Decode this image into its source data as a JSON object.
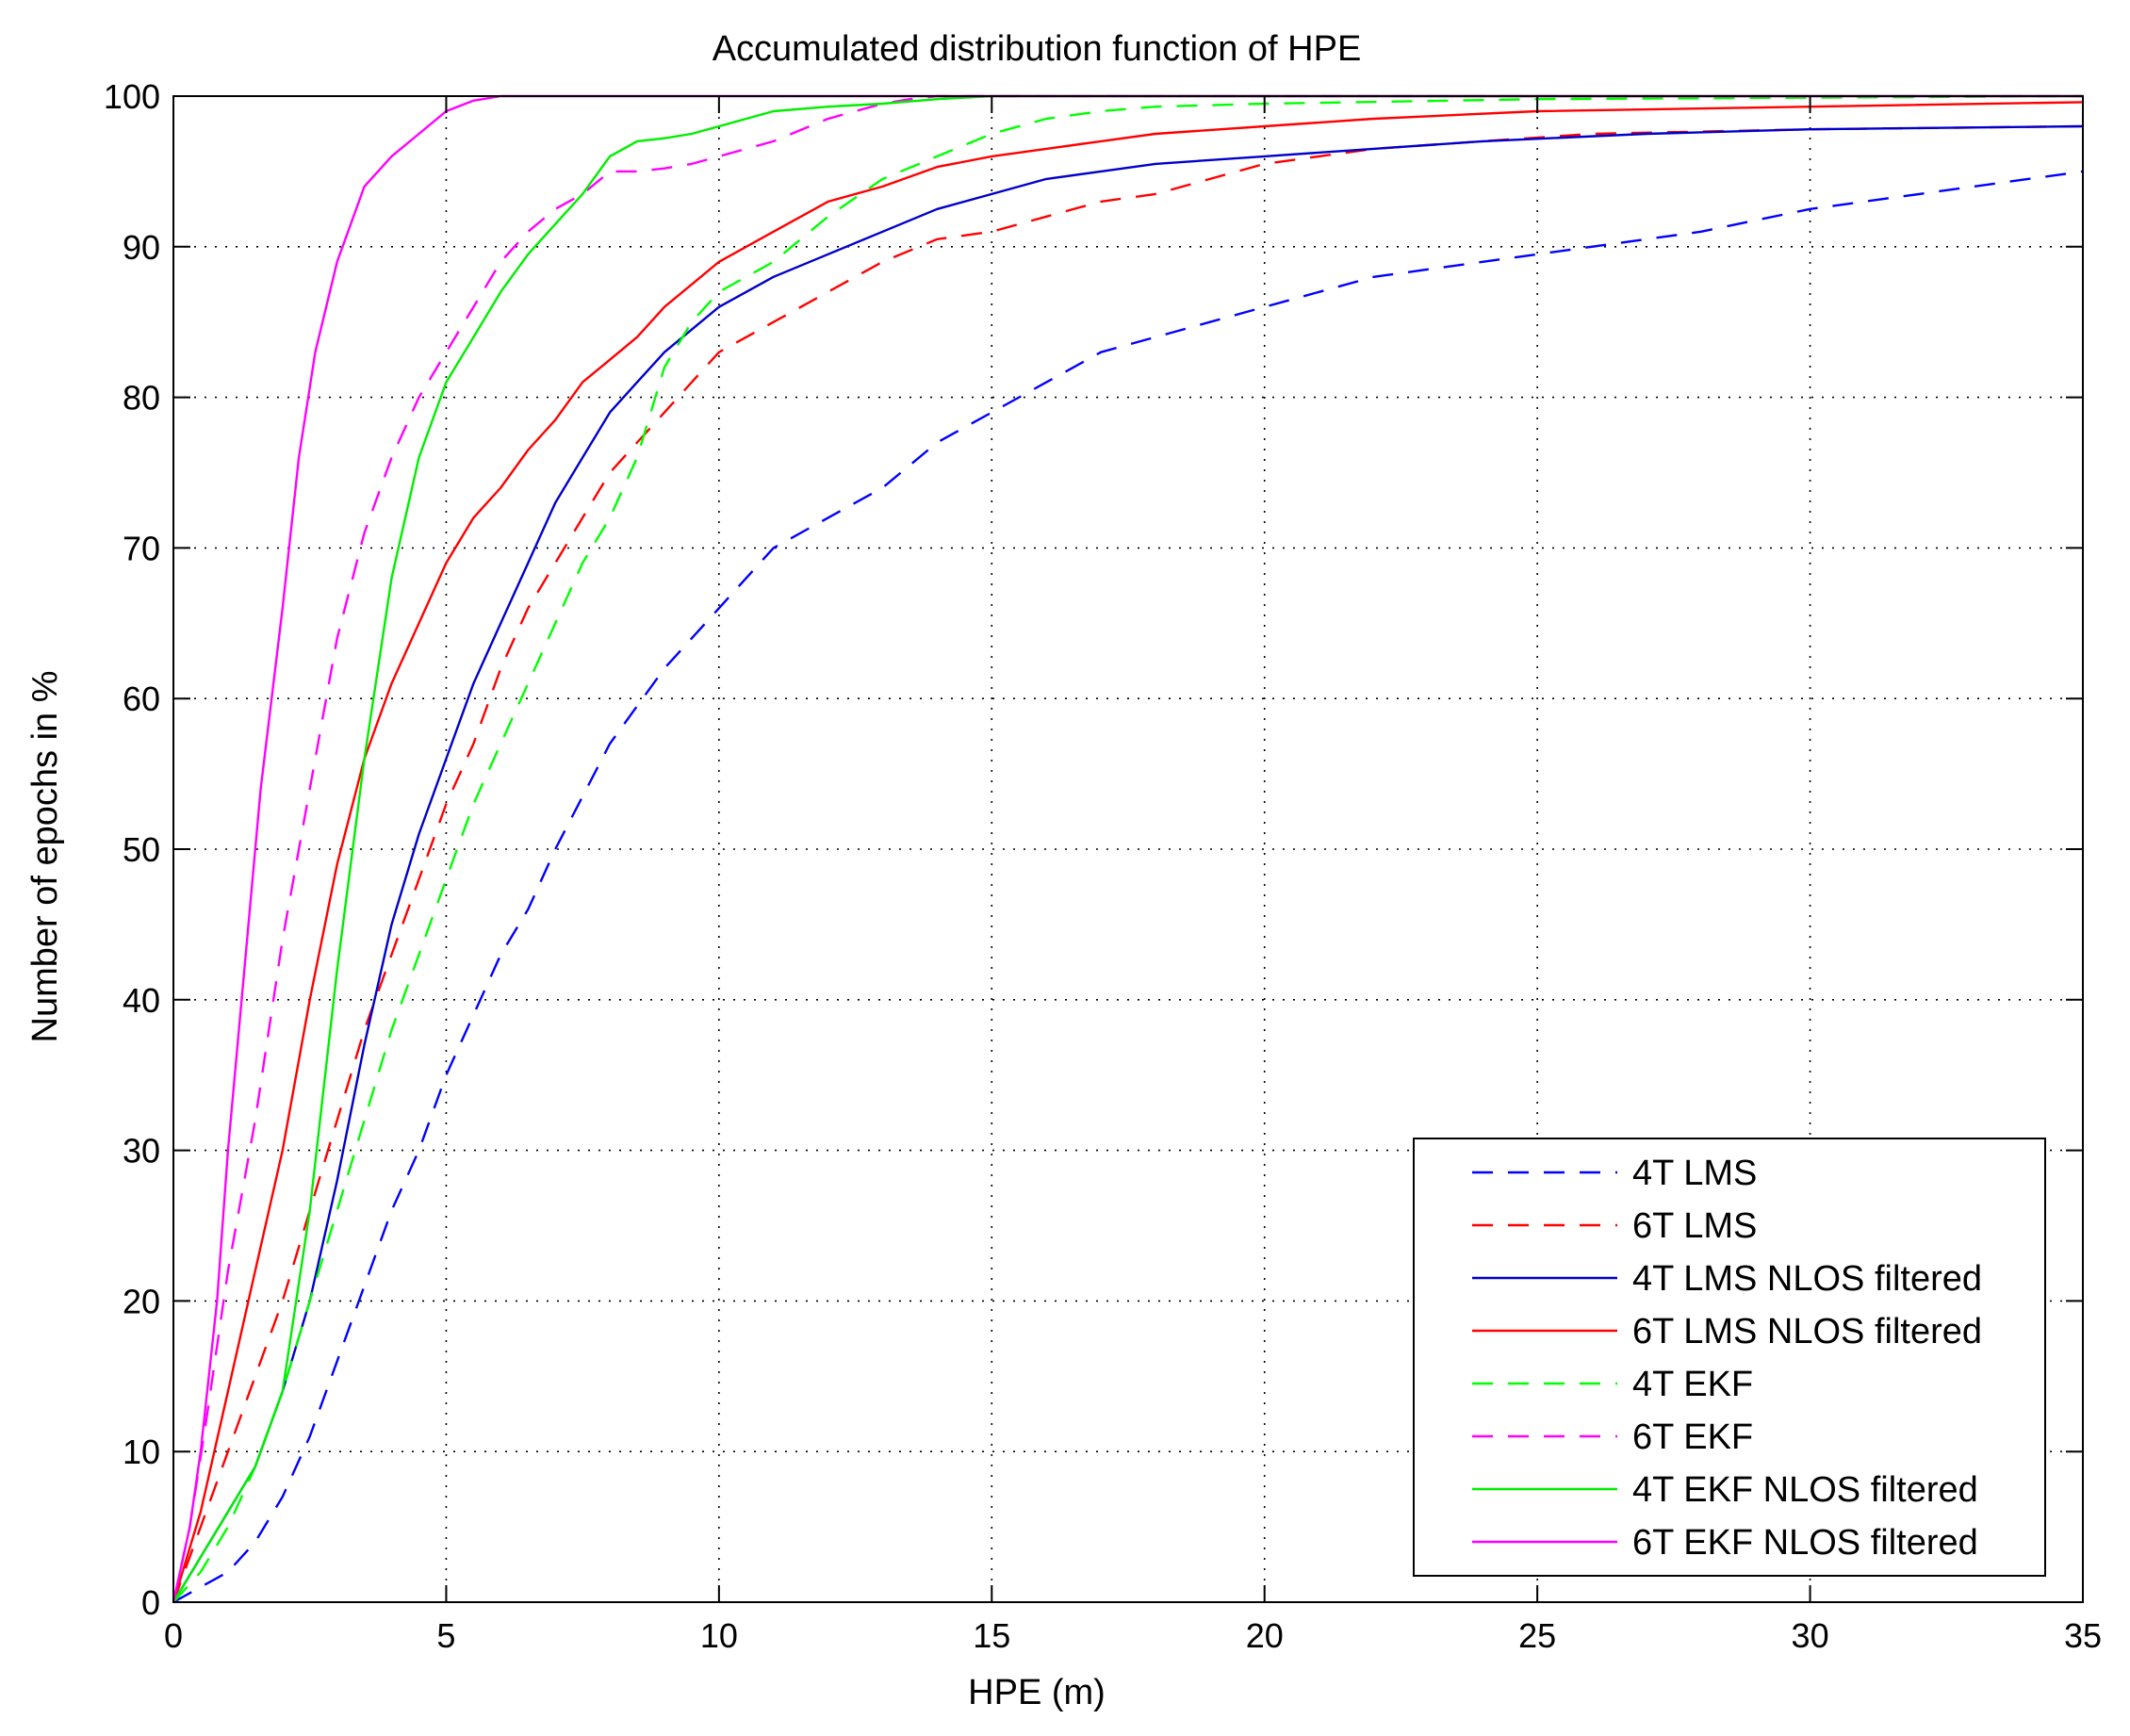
{
  "chart_data": {
    "type": "line",
    "title": "Accumulated distribution function of HPE",
    "xlabel": "HPE (m)",
    "ylabel": "Number of epochs in %",
    "xlim": [
      0,
      35
    ],
    "ylim": [
      0,
      100
    ],
    "xticks": [
      0,
      5,
      10,
      15,
      20,
      25,
      30,
      35
    ],
    "yticks": [
      0,
      10,
      20,
      30,
      40,
      50,
      60,
      70,
      80,
      90,
      100
    ],
    "grid": true,
    "legend_position": "bottom-right",
    "series": [
      {
        "name": "4T LMS",
        "color": "#0000ff",
        "dashed": true,
        "x": [
          0,
          0.5,
          1,
          1.5,
          2,
          2.5,
          3,
          3.5,
          4,
          4.5,
          5,
          5.5,
          6,
          6.5,
          7,
          8,
          9,
          10,
          11,
          12,
          13,
          14,
          15,
          16,
          17,
          18,
          19,
          20,
          22,
          24,
          26,
          28,
          30,
          32,
          35
        ],
        "y": [
          0,
          1,
          2,
          4,
          7,
          11,
          16,
          21,
          26,
          30,
          35,
          39,
          43,
          46,
          50,
          57,
          62,
          66,
          70,
          72,
          74,
          77,
          79,
          81,
          83,
          84,
          85,
          86,
          88,
          89,
          90,
          91,
          92.5,
          93.5,
          95
        ]
      },
      {
        "name": "6T LMS",
        "color": "#ff0000",
        "dashed": true,
        "x": [
          0,
          0.5,
          1,
          1.5,
          2,
          2.5,
          3,
          3.5,
          4,
          4.5,
          5,
          5.5,
          6,
          6.5,
          7,
          7.5,
          8,
          8.5,
          9,
          9.5,
          10,
          11,
          12,
          13,
          14,
          15,
          16,
          17,
          18,
          19,
          20,
          22,
          24,
          26,
          30,
          35
        ],
        "y": [
          0,
          5,
          10,
          15,
          20,
          26,
          32,
          38,
          43,
          48,
          53,
          57,
          62,
          66,
          69,
          72,
          75,
          77,
          79,
          81,
          83,
          85,
          87,
          89,
          90.5,
          91,
          92,
          93,
          93.5,
          94.5,
          95.5,
          96.5,
          97,
          97.5,
          97.8,
          98
        ]
      },
      {
        "name": "4T LMS NLOS filtered",
        "color": "#0000cc",
        "dashed": false,
        "x": [
          0,
          0.5,
          1,
          1.5,
          2,
          2.5,
          3,
          3.5,
          4,
          4.5,
          5,
          5.5,
          6,
          6.5,
          7,
          7.5,
          8,
          8.5,
          9,
          9.5,
          10,
          11,
          12,
          13,
          14,
          15,
          16,
          17,
          18,
          20,
          22,
          24,
          27,
          30,
          35
        ],
        "y": [
          0,
          3,
          6,
          9,
          14,
          20,
          28,
          37,
          45,
          51,
          56,
          61,
          65,
          69,
          73,
          76,
          79,
          81,
          83,
          84.5,
          86,
          88,
          89.5,
          91,
          92.5,
          93.5,
          94.5,
          95,
          95.5,
          96,
          96.5,
          97,
          97.5,
          97.8,
          98
        ]
      },
      {
        "name": "6T LMS NLOS filtered",
        "color": "#ff0000",
        "dashed": false,
        "x": [
          0,
          0.5,
          1,
          1.5,
          2,
          2.5,
          3,
          3.5,
          4,
          4.5,
          5,
          5.5,
          6,
          6.5,
          7,
          7.5,
          8,
          8.5,
          9,
          9.5,
          10,
          11,
          12,
          13,
          14,
          15,
          16,
          17,
          18,
          20,
          22,
          25,
          30,
          35
        ],
        "y": [
          0,
          6,
          14,
          22,
          30,
          40,
          49,
          56,
          61,
          65,
          69,
          72,
          74,
          76.5,
          78.5,
          81,
          82.5,
          84,
          86,
          87.5,
          89,
          91,
          93,
          94,
          95.3,
          96,
          96.5,
          97,
          97.5,
          98,
          98.5,
          99,
          99.3,
          99.6
        ]
      },
      {
        "name": "4T EKF",
        "color": "#00ff00",
        "dashed": true,
        "x": [
          0,
          0.5,
          1,
          1.5,
          2,
          2.5,
          3,
          3.5,
          4,
          4.5,
          5,
          5.5,
          6,
          6.5,
          7,
          7.5,
          8,
          8.5,
          9,
          9.5,
          10,
          11,
          12,
          13,
          14,
          15,
          16,
          17,
          18,
          20,
          25,
          30,
          35
        ],
        "y": [
          0,
          2,
          5,
          9,
          14,
          20,
          26,
          32,
          38,
          43,
          48,
          53,
          57,
          61,
          65,
          69,
          72,
          76,
          82,
          85,
          87,
          89,
          92,
          94.5,
          96,
          97.5,
          98.5,
          99,
          99.3,
          99.5,
          99.8,
          99.9,
          100
        ]
      },
      {
        "name": "6T EKF",
        "color": "#ff00ff",
        "dashed": true,
        "x": [
          0,
          0.3,
          0.6,
          1,
          1.5,
          2,
          2.5,
          3,
          3.5,
          4,
          4.5,
          5,
          5.5,
          6,
          6.5,
          7,
          7.5,
          8,
          8.5,
          9,
          9.5,
          10,
          11,
          12,
          13,
          13.5,
          14,
          35
        ],
        "y": [
          0,
          5,
          12,
          22,
          32,
          44,
          54,
          64,
          71,
          76,
          80,
          83,
          86,
          89,
          91,
          92.5,
          93.5,
          95,
          95,
          95.2,
          95.5,
          96,
          97,
          98.5,
          99.5,
          99.8,
          100,
          100
        ]
      },
      {
        "name": "4T EKF NLOS filtered",
        "color": "#00ee00",
        "dashed": false,
        "x": [
          0,
          0.5,
          1,
          1.5,
          2,
          2.5,
          3,
          3.5,
          4,
          4.5,
          5,
          5.5,
          6,
          6.5,
          7,
          7.5,
          8,
          8.5,
          9,
          9.5,
          10,
          11,
          12,
          13,
          14,
          15,
          16,
          35
        ],
        "y": [
          0,
          3,
          6,
          9,
          14,
          26,
          42,
          56,
          68,
          76,
          81,
          84,
          87,
          89.5,
          91.5,
          93.5,
          96,
          97,
          97.2,
          97.5,
          98,
          99,
          99.3,
          99.5,
          99.8,
          100,
          100,
          100
        ]
      },
      {
        "name": "6T EKF NLOS filtered",
        "color": "#ff00ff",
        "dashed": false,
        "x": [
          0,
          0.3,
          0.5,
          0.8,
          1,
          1.3,
          1.6,
          2,
          2.3,
          2.6,
          3,
          3.5,
          4,
          4.5,
          5,
          5.5,
          6,
          8,
          10,
          35
        ],
        "y": [
          0,
          5,
          10,
          20,
          30,
          42,
          54,
          66,
          76,
          83,
          89,
          94,
          96,
          97.5,
          99,
          99.7,
          100,
          100,
          100,
          100
        ]
      }
    ]
  }
}
